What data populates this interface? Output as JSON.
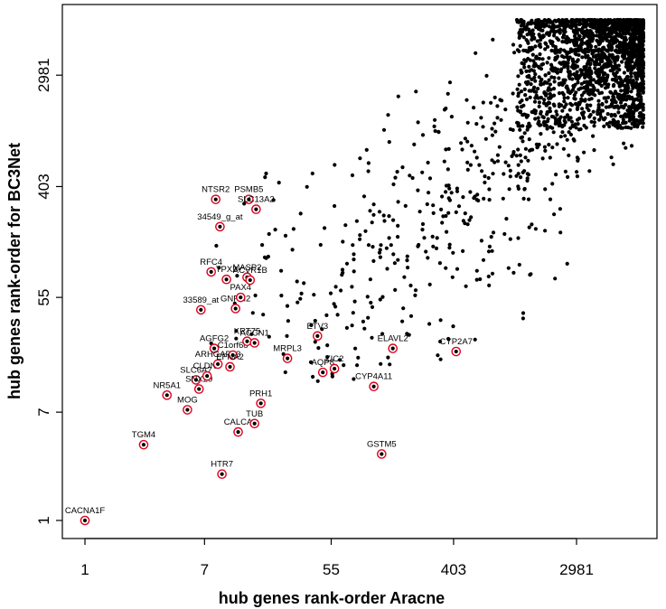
{
  "chart_data": {
    "type": "scatter",
    "scale": "log",
    "xlabel": "hub genes rank-order Aracne",
    "ylabel": "hub genes rank-order for BC3Net",
    "x_ticks": [
      1,
      7,
      55,
      403,
      2981
    ],
    "y_ticks": [
      1,
      7,
      55,
      403,
      2981
    ],
    "xlim": [
      0.7,
      17000
    ],
    "ylim": [
      0.7,
      17000
    ],
    "grid": false,
    "legend": "none",
    "colors": {
      "points": "#000000",
      "highlight": "#e0001b"
    },
    "highlighted_genes": [
      {
        "label": "CACNA1F",
        "x": 1,
        "y": 1
      },
      {
        "label": "TGM4",
        "x": 2.6,
        "y": 3.9
      },
      {
        "label": "NR5A1",
        "x": 3.8,
        "y": 9.5
      },
      {
        "label": "MOG",
        "x": 5.3,
        "y": 7.3
      },
      {
        "label": "SLC6A7",
        "x": 6.1,
        "y": 12.5
      },
      {
        "label": "SNX29",
        "x": 6.4,
        "y": 10.6
      },
      {
        "label": "CLDN9",
        "x": 7.3,
        "y": 13.4
      },
      {
        "label": "AGFG2",
        "x": 8.2,
        "y": 22
      },
      {
        "label": "ARHGAP33",
        "x": 8.7,
        "y": 16.6
      },
      {
        "label": "HTR7",
        "x": 9.3,
        "y": 2.3
      },
      {
        "label": "C1orf68",
        "x": 11.1,
        "y": 19.5
      },
      {
        "label": "EFNA2",
        "x": 10.6,
        "y": 15.8
      },
      {
        "label": "CALCA",
        "x": 12.1,
        "y": 4.9
      },
      {
        "label": "KRT75",
        "x": 14,
        "y": 25
      },
      {
        "label": "ACCN1",
        "x": 15.8,
        "y": 24.3
      },
      {
        "label": "TUB",
        "x": 15.8,
        "y": 5.7
      },
      {
        "label": "PRH1",
        "x": 17.5,
        "y": 8.2
      },
      {
        "label": "MRPL3",
        "x": 27,
        "y": 18.4
      },
      {
        "label": "ETV3",
        "x": 44,
        "y": 27.5
      },
      {
        "label": "AQP8",
        "x": 48,
        "y": 14.3
      },
      {
        "label": "ZIC2",
        "x": 58,
        "y": 15.3
      },
      {
        "label": "CYP4A11",
        "x": 110,
        "y": 11.1
      },
      {
        "label": "GSTM5",
        "x": 125,
        "y": 3.3
      },
      {
        "label": "ELAVL2",
        "x": 150,
        "y": 22
      },
      {
        "label": "CYP2A7",
        "x": 420,
        "y": 20.8
      },
      {
        "label": "33589_at",
        "x": 6.6,
        "y": 44
      },
      {
        "label": "GNRH2",
        "x": 11.6,
        "y": 45
      },
      {
        "label": "PAX4",
        "x": 12.6,
        "y": 55
      },
      {
        "label": "TPX2",
        "x": 10,
        "y": 76
      },
      {
        "label": "RFC4",
        "x": 7.8,
        "y": 87
      },
      {
        "label": "MASP2",
        "x": 14,
        "y": 79
      },
      {
        "label": "ACVR1B",
        "x": 14.7,
        "y": 75
      },
      {
        "label": "NTSR2",
        "x": 8.4,
        "y": 320
      },
      {
        "label": "PSMB5",
        "x": 14.4,
        "y": 320
      },
      {
        "label": "SLC13A2",
        "x": 16.2,
        "y": 268
      },
      {
        "label": "34549_g_at",
        "x": 9,
        "y": 196
      }
    ]
  }
}
